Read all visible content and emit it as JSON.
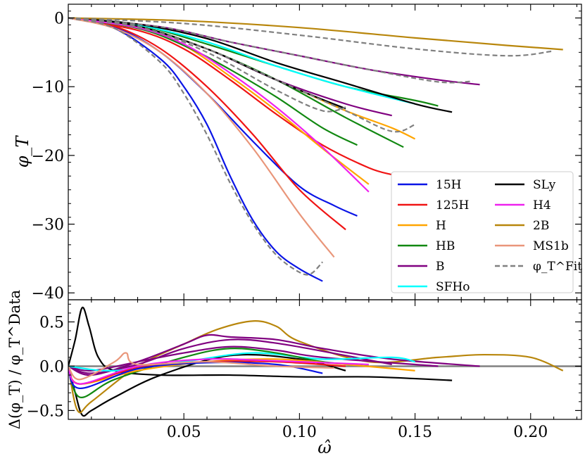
{
  "chart_data": [
    {
      "type": "line",
      "panel": "top",
      "ylabel": "φ_T",
      "xlabel": "",
      "xlim": [
        0.0,
        0.222
      ],
      "ylim": [
        -41.0,
        2.0
      ],
      "yticks": [
        0,
        -10,
        -20,
        -30,
        -40
      ],
      "ytick_labels": [
        "0",
        "−10",
        "−20",
        "−30",
        "−40"
      ],
      "legend": {
        "placement": "lower-right",
        "entries": [
          {
            "label": "15H",
            "color": "#0a14e6",
            "style": "solid"
          },
          {
            "label": "SLy",
            "color": "#000000",
            "style": "solid"
          },
          {
            "label": "125H",
            "color": "#f01414",
            "style": "solid"
          },
          {
            "label": "H4",
            "color": "#ee22ee",
            "style": "solid"
          },
          {
            "label": "H",
            "color": "#ffa500",
            "style": "solid"
          },
          {
            "label": "2B",
            "color": "#b8860b",
            "style": "solid"
          },
          {
            "label": "HB",
            "color": "#118811",
            "style": "solid"
          },
          {
            "label": "MS1b",
            "color": "#e9967a",
            "style": "solid"
          },
          {
            "label": "B",
            "color": "#800080",
            "style": "solid"
          },
          {
            "label": "φ_T^Fit",
            "color": "#808080",
            "style": "dashed"
          },
          {
            "label": "SFHo",
            "color": "#00ffff",
            "style": "solid"
          }
        ]
      },
      "series": [
        {
          "name": "15H",
          "color": "#0a14e6",
          "x": [
            0.0,
            0.02,
            0.04,
            0.05,
            0.06,
            0.07,
            0.08,
            0.09,
            0.1,
            0.11
          ],
          "y": [
            0,
            -1.5,
            -6,
            -10,
            -15.5,
            -23,
            -29.5,
            -34,
            -36.5,
            -38.3
          ]
        },
        {
          "name": "15H",
          "color": "#0a14e6",
          "x": [
            0.0,
            0.02,
            0.04,
            0.06,
            0.08,
            0.1,
            0.115,
            0.125
          ],
          "y": [
            0,
            -1.3,
            -5,
            -11,
            -18,
            -24.5,
            -27.3,
            -28.8
          ]
        },
        {
          "name": "125H",
          "color": "#f01414",
          "x": [
            0.0,
            0.02,
            0.04,
            0.06,
            0.08,
            0.1,
            0.12
          ],
          "y": [
            0,
            -1.2,
            -4.5,
            -10,
            -17,
            -25,
            -30.8
          ]
        },
        {
          "name": "125H",
          "color": "#f01414",
          "x": [
            0.0,
            0.03,
            0.05,
            0.07,
            0.09,
            0.11,
            0.13,
            0.14
          ],
          "y": [
            0,
            -1.8,
            -4.5,
            -9,
            -14,
            -18.5,
            -21.8,
            -22.8
          ]
        },
        {
          "name": "H",
          "color": "#ffa500",
          "x": [
            0.0,
            0.03,
            0.05,
            0.07,
            0.09,
            0.11,
            0.13
          ],
          "y": [
            0,
            -1.5,
            -4,
            -8.5,
            -13.5,
            -19,
            -24.2
          ]
        },
        {
          "name": "H",
          "color": "#ffa500",
          "x": [
            0.0,
            0.03,
            0.06,
            0.08,
            0.1,
            0.12,
            0.14,
            0.15
          ],
          "y": [
            0,
            -1.2,
            -4.5,
            -7.5,
            -10.5,
            -13.5,
            -16,
            -17.6
          ]
        },
        {
          "name": "HB",
          "color": "#118811",
          "x": [
            0.0,
            0.03,
            0.05,
            0.07,
            0.09,
            0.11,
            0.125
          ],
          "y": [
            0,
            -1.5,
            -4,
            -7.5,
            -11.5,
            -16,
            -18.5
          ]
        },
        {
          "name": "HB",
          "color": "#118811",
          "x": [
            0.0,
            0.03,
            0.06,
            0.09,
            0.12,
            0.145
          ],
          "y": [
            0,
            -1.2,
            -4.5,
            -9,
            -14.5,
            -18.8
          ]
        },
        {
          "name": "HB",
          "color": "#118811",
          "x": [
            0.0,
            0.03,
            0.06,
            0.09,
            0.12,
            0.15,
            0.16
          ],
          "y": [
            0,
            -1,
            -3.8,
            -7,
            -10,
            -12,
            -12.8
          ]
        },
        {
          "name": "B",
          "color": "#800080",
          "x": [
            0.0,
            0.04,
            0.07,
            0.1,
            0.13,
            0.16,
            0.178
          ],
          "y": [
            0,
            -1.3,
            -3.5,
            -5.5,
            -7.5,
            -9,
            -9.7
          ]
        },
        {
          "name": "B",
          "color": "#800080",
          "x": [
            0.0,
            0.03,
            0.06,
            0.09,
            0.12,
            0.14
          ],
          "y": [
            0,
            -1.3,
            -4.5,
            -9,
            -12.5,
            -14.2
          ]
        },
        {
          "name": "SFHo",
          "color": "#00ffff",
          "x": [
            0.0,
            0.03,
            0.06,
            0.09,
            0.12,
            0.15
          ],
          "y": [
            0,
            -1,
            -3.5,
            -7,
            -10,
            -12.5
          ]
        },
        {
          "name": "SLy",
          "color": "#000000",
          "x": [
            0.0,
            0.03,
            0.06,
            0.09,
            0.12,
            0.15,
            0.166
          ],
          "y": [
            0,
            -0.9,
            -3,
            -6.5,
            -9.5,
            -12.5,
            -13.7
          ]
        },
        {
          "name": "SLy",
          "color": "#000000",
          "x": [
            0.0,
            0.03,
            0.06,
            0.08,
            0.1,
            0.12
          ],
          "y": [
            0,
            -1.2,
            -4.5,
            -7.5,
            -10.5,
            -13.2
          ]
        },
        {
          "name": "H4",
          "color": "#ee22ee",
          "x": [
            0.0,
            0.03,
            0.05,
            0.07,
            0.09,
            0.11,
            0.13
          ],
          "y": [
            0,
            -1.4,
            -3.8,
            -8,
            -13,
            -18.8,
            -25.3
          ]
        },
        {
          "name": "2B",
          "color": "#b8860b",
          "x": [
            0.0,
            0.05,
            0.1,
            0.15,
            0.19,
            0.214
          ],
          "y": [
            0,
            -0.4,
            -1.4,
            -2.9,
            -4,
            -4.6
          ]
        },
        {
          "name": "MS1b",
          "color": "#e9967a",
          "x": [
            0.0,
            0.02,
            0.04,
            0.06,
            0.08,
            0.1,
            0.115
          ],
          "y": [
            0,
            -1.5,
            -5,
            -11,
            -19,
            -28.5,
            -34.8
          ]
        }
      ],
      "fit_series": [
        {
          "name": "φ_T^Fit",
          "color": "#808080",
          "x": [
            0.0,
            0.02,
            0.04,
            0.05,
            0.06,
            0.07,
            0.08,
            0.09,
            0.1,
            0.105,
            0.11
          ],
          "y": [
            0,
            -1.5,
            -6.5,
            -11,
            -17,
            -24,
            -30,
            -34.5,
            -37,
            -37.2,
            -35.5
          ]
        },
        {
          "name": "φ_T^Fit",
          "color": "#808080",
          "x": [
            0.0,
            0.05,
            0.1,
            0.15,
            0.19,
            0.21
          ],
          "y": [
            0,
            -0.8,
            -2.5,
            -4.5,
            -5.5,
            -4.8
          ]
        },
        {
          "name": "φ_T^Fit",
          "color": "#808080",
          "x": [
            0.0,
            0.03,
            0.06,
            0.09,
            0.12,
            0.14,
            0.15
          ],
          "y": [
            0,
            -1.3,
            -4.5,
            -9,
            -13.5,
            -16.5,
            -15.5
          ]
        },
        {
          "name": "φ_T^Fit",
          "color": "#808080",
          "x": [
            0.0,
            0.04,
            0.07,
            0.1,
            0.13,
            0.16,
            0.175
          ],
          "y": [
            0,
            -1.3,
            -3.5,
            -5.5,
            -7.5,
            -9.3,
            -9.2
          ]
        },
        {
          "name": "φ_T^Fit",
          "color": "#808080",
          "x": [
            0.0,
            0.03,
            0.06,
            0.09,
            0.11,
            0.12
          ],
          "y": [
            0,
            -1.2,
            -5,
            -10.5,
            -13.5,
            -13
          ]
        }
      ]
    },
    {
      "type": "line",
      "panel": "bottom",
      "xlabel": "ω̂",
      "ylabel": "Δ(φ_T) / φ_T^Data",
      "xlim": [
        0.0,
        0.222
      ],
      "ylim": [
        -0.6,
        0.75
      ],
      "xticks": [
        0.05,
        0.1,
        0.15,
        0.2
      ],
      "xtick_labels": [
        "0.05",
        "0.10",
        "0.15",
        "0.20"
      ],
      "yticks": [
        0.5,
        0.0,
        -0.5
      ],
      "ytick_labels": [
        "0.5",
        "0.0",
        "−0.5"
      ],
      "reference_line": {
        "y": 0.0,
        "color": "#808080"
      },
      "series": [
        {
          "name": "SLy",
          "color": "#000000",
          "x": [
            0.0,
            0.003,
            0.006,
            0.009,
            0.013,
            0.02,
            0.04,
            0.07,
            0.1,
            0.13,
            0.15,
            0.166
          ],
          "y": [
            0,
            0.3,
            0.66,
            0.45,
            0.1,
            -0.05,
            -0.1,
            -0.1,
            -0.12,
            -0.12,
            -0.14,
            -0.16
          ]
        },
        {
          "name": "SLy",
          "color": "#000000",
          "x": [
            0.0,
            0.003,
            0.006,
            0.01,
            0.02,
            0.04,
            0.07,
            0.1,
            0.12
          ],
          "y": [
            0,
            -0.3,
            -0.55,
            -0.5,
            -0.35,
            -0.1,
            0.12,
            0.08,
            -0.05
          ]
        },
        {
          "name": "2B",
          "color": "#b8860b",
          "x": [
            0.0,
            0.004,
            0.01,
            0.03,
            0.05,
            0.065,
            0.08,
            0.09,
            0.1,
            0.13,
            0.16,
            0.18,
            0.2,
            0.214
          ],
          "y": [
            0,
            -0.5,
            -0.4,
            0.0,
            0.25,
            0.42,
            0.51,
            0.45,
            0.28,
            0.05,
            0.1,
            0.13,
            0.1,
            -0.05
          ]
        },
        {
          "name": "B",
          "color": "#800080",
          "x": [
            0.0,
            0.01,
            0.03,
            0.05,
            0.06,
            0.07,
            0.09,
            0.11,
            0.14,
            0.178
          ],
          "y": [
            0,
            -0.1,
            0.05,
            0.25,
            0.35,
            0.33,
            0.3,
            0.2,
            0.08,
            0.0
          ]
        },
        {
          "name": "B",
          "color": "#800080",
          "x": [
            0.0,
            0.01,
            0.03,
            0.05,
            0.07,
            0.09,
            0.12,
            0.14
          ],
          "y": [
            0,
            -0.08,
            0.02,
            0.2,
            0.3,
            0.26,
            0.12,
            0.02
          ]
        },
        {
          "name": "B",
          "color": "#800080",
          "x": [
            0.0,
            0.01,
            0.03,
            0.05,
            0.07,
            0.09,
            0.11,
            0.16
          ],
          "y": [
            0,
            -0.05,
            0.05,
            0.15,
            0.22,
            0.18,
            0.1,
            0.0
          ]
        },
        {
          "name": "SFHo",
          "color": "#00ffff",
          "x": [
            0.0,
            0.02,
            0.05,
            0.08,
            0.11,
            0.14,
            0.15
          ],
          "y": [
            0,
            -0.05,
            0.05,
            0.15,
            0.08,
            0.1,
            0.05
          ]
        },
        {
          "name": "HB",
          "color": "#118811",
          "x": [
            0.0,
            0.005,
            0.02,
            0.05,
            0.07,
            0.09,
            0.11,
            0.13
          ],
          "y": [
            0,
            -0.35,
            -0.15,
            0.1,
            0.2,
            0.15,
            0.05,
            0.0
          ]
        },
        {
          "name": "H",
          "color": "#ffa500",
          "x": [
            0.0,
            0.005,
            0.03,
            0.06,
            0.09,
            0.12,
            0.15
          ],
          "y": [
            0,
            -0.2,
            -0.05,
            0.05,
            0.08,
            0.02,
            -0.05
          ]
        },
        {
          "name": "125H",
          "color": "#f01414",
          "x": [
            0.0,
            0.005,
            0.03,
            0.06,
            0.09,
            0.12
          ],
          "y": [
            0,
            -0.2,
            -0.02,
            0.05,
            0.05,
            0.0
          ]
        },
        {
          "name": "15H",
          "color": "#0a14e6",
          "x": [
            0.0,
            0.005,
            0.03,
            0.06,
            0.09,
            0.11
          ],
          "y": [
            0,
            -0.25,
            -0.03,
            0.04,
            0.02,
            -0.08
          ]
        },
        {
          "name": "H4",
          "color": "#ee22ee",
          "x": [
            0.0,
            0.005,
            0.03,
            0.06,
            0.09,
            0.13
          ],
          "y": [
            0,
            -0.2,
            0.0,
            0.08,
            0.06,
            0.02
          ]
        },
        {
          "name": "MS1b",
          "color": "#e9967a",
          "x": [
            0.0,
            0.005,
            0.02,
            0.025,
            0.03,
            0.06,
            0.09,
            0.115
          ],
          "y": [
            0,
            -0.15,
            0.05,
            0.15,
            0.02,
            0.05,
            0.0,
            -0.02
          ]
        }
      ]
    }
  ]
}
